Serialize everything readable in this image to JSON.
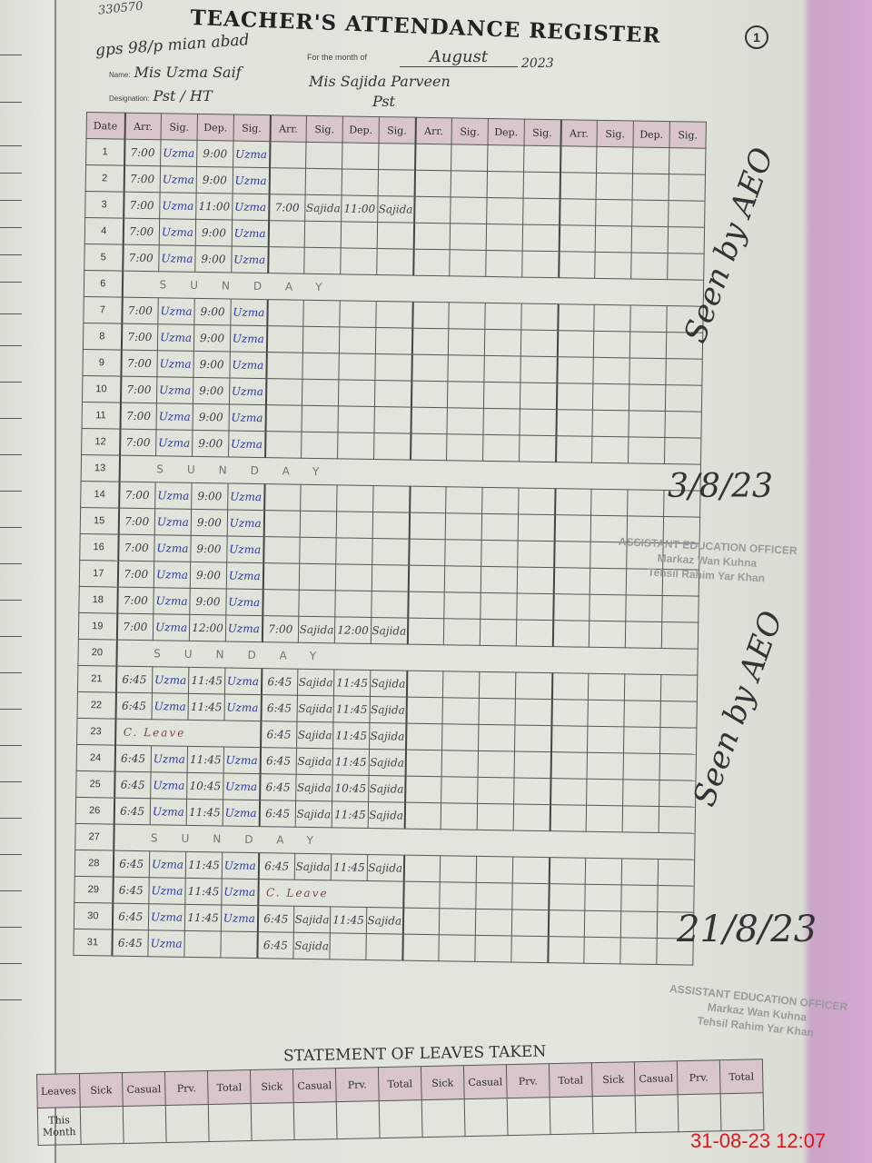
{
  "serial": "330570",
  "title": "TEACHER'S ATTENDANCE REGISTER",
  "page_number": "1",
  "school": "gps 98/p mian abad",
  "month_label": "For the month of",
  "month": "August",
  "year": "2023",
  "labels": {
    "name": "Name:",
    "designation": "Designation:"
  },
  "teachers": [
    {
      "name": "Mis Uzma Saif",
      "designation": "Pst / HT"
    },
    {
      "name": "Mis Sajida Parveen",
      "designation": "Pst"
    },
    {
      "name": "",
      "designation": ""
    },
    {
      "name": "",
      "designation": ""
    }
  ],
  "columns": [
    "Date",
    "Arr.",
    "Sig.",
    "Dep.",
    "Sig."
  ],
  "rows": [
    {
      "d": "1",
      "c": [
        "7:00",
        "Uzma",
        "9:00",
        "Uzma",
        "",
        "",
        "",
        ""
      ]
    },
    {
      "d": "2",
      "c": [
        "7:00",
        "Uzma",
        "9:00",
        "Uzma",
        "",
        "",
        "",
        ""
      ]
    },
    {
      "d": "3",
      "c": [
        "7:00",
        "Uzma",
        "11:00",
        "Uzma",
        "7:00",
        "Sajida",
        "11:00",
        "Sajida"
      ]
    },
    {
      "d": "4",
      "c": [
        "7:00",
        "Uzma",
        "9:00",
        "Uzma",
        "",
        "",
        "",
        ""
      ]
    },
    {
      "d": "5",
      "c": [
        "7:00",
        "Uzma",
        "9:00",
        "Uzma",
        "",
        "",
        "",
        ""
      ]
    },
    {
      "d": "6",
      "note": "SUNDAY"
    },
    {
      "d": "7",
      "c": [
        "7:00",
        "Uzma",
        "9:00",
        "Uzma",
        "",
        "",
        "",
        ""
      ]
    },
    {
      "d": "8",
      "c": [
        "7:00",
        "Uzma",
        "9:00",
        "Uzma",
        "",
        "",
        "",
        ""
      ]
    },
    {
      "d": "9",
      "c": [
        "7:00",
        "Uzma",
        "9:00",
        "Uzma",
        "",
        "",
        "",
        ""
      ]
    },
    {
      "d": "10",
      "c": [
        "7:00",
        "Uzma",
        "9:00",
        "Uzma",
        "",
        "",
        "",
        ""
      ]
    },
    {
      "d": "11",
      "c": [
        "7:00",
        "Uzma",
        "9:00",
        "Uzma",
        "",
        "",
        "",
        ""
      ]
    },
    {
      "d": "12",
      "c": [
        "7:00",
        "Uzma",
        "9:00",
        "Uzma",
        "",
        "",
        "",
        ""
      ]
    },
    {
      "d": "13",
      "note": "SUNDAY"
    },
    {
      "d": "14",
      "c": [
        "7:00",
        "Uzma",
        "9:00",
        "Uzma",
        "",
        "",
        "",
        ""
      ]
    },
    {
      "d": "15",
      "c": [
        "7:00",
        "Uzma",
        "9:00",
        "Uzma",
        "",
        "",
        "",
        ""
      ]
    },
    {
      "d": "16",
      "c": [
        "7:00",
        "Uzma",
        "9:00",
        "Uzma",
        "",
        "",
        "",
        ""
      ]
    },
    {
      "d": "17",
      "c": [
        "7:00",
        "Uzma",
        "9:00",
        "Uzma",
        "",
        "",
        "",
        ""
      ]
    },
    {
      "d": "18",
      "c": [
        "7:00",
        "Uzma",
        "9:00",
        "Uzma",
        "",
        "",
        "",
        ""
      ]
    },
    {
      "d": "19",
      "c": [
        "7:00",
        "Uzma",
        "12:00",
        "Uzma",
        "7:00",
        "Sajida",
        "12:00",
        "Sajida"
      ]
    },
    {
      "d": "20",
      "note": "SUNDAY"
    },
    {
      "d": "21",
      "c": [
        "6:45",
        "Uzma",
        "11:45",
        "Uzma",
        "6:45",
        "Sajida",
        "11:45",
        "Sajida"
      ]
    },
    {
      "d": "22",
      "c": [
        "6:45",
        "Uzma",
        "11:45",
        "Uzma",
        "6:45",
        "Sajida",
        "11:45",
        "Sajida"
      ]
    },
    {
      "d": "23",
      "leave1": "C. Leave",
      "c": [
        "",
        "",
        "",
        "",
        "6:45",
        "Sajida",
        "11:45",
        "Sajida"
      ]
    },
    {
      "d": "24",
      "c": [
        "6:45",
        "Uzma",
        "11:45",
        "Uzma",
        "6:45",
        "Sajida",
        "11:45",
        "Sajida"
      ]
    },
    {
      "d": "25",
      "c": [
        "6:45",
        "Uzma",
        "10:45",
        "Uzma",
        "6:45",
        "Sajida",
        "10:45",
        "Sajida"
      ]
    },
    {
      "d": "26",
      "c": [
        "6:45",
        "Uzma",
        "11:45",
        "Uzma",
        "6:45",
        "Sajida",
        "11:45",
        "Sajida"
      ]
    },
    {
      "d": "27",
      "note": "SUNDAY"
    },
    {
      "d": "28",
      "c": [
        "6:45",
        "Uzma",
        "11:45",
        "Uzma",
        "6:45",
        "Sajida",
        "11:45",
        "Sajida"
      ]
    },
    {
      "d": "29",
      "leave2": "C. Leave",
      "c": [
        "6:45",
        "Uzma",
        "11:45",
        "Uzma",
        "",
        "",
        "",
        ""
      ]
    },
    {
      "d": "30",
      "c": [
        "6:45",
        "Uzma",
        "11:45",
        "Uzma",
        "6:45",
        "Sajida",
        "11:45",
        "Sajida"
      ]
    },
    {
      "d": "31",
      "c": [
        "6:45",
        "Uzma",
        "",
        "",
        "6:45",
        "Sajida",
        "",
        ""
      ]
    }
  ],
  "annotations": {
    "seen_1": "Seen by AEO",
    "date_1": "3/8/23",
    "seen_2": "Seen by AEO",
    "date_2": "21/8/23"
  },
  "stamp": {
    "line1": "ASSISTANT EDUCATION OFFICER",
    "line2": "Markaz Wan Kuhna",
    "line3": "Tehsil Rahim Yar Khan"
  },
  "leaves": {
    "title": "STATEMENT OF LEAVES TAKEN",
    "row_header": "Leaves",
    "columns": [
      "Sick",
      "Casual",
      "Prv.",
      "Total"
    ],
    "row_label": "This Month"
  },
  "timestamp": "31-08-23  12:07"
}
